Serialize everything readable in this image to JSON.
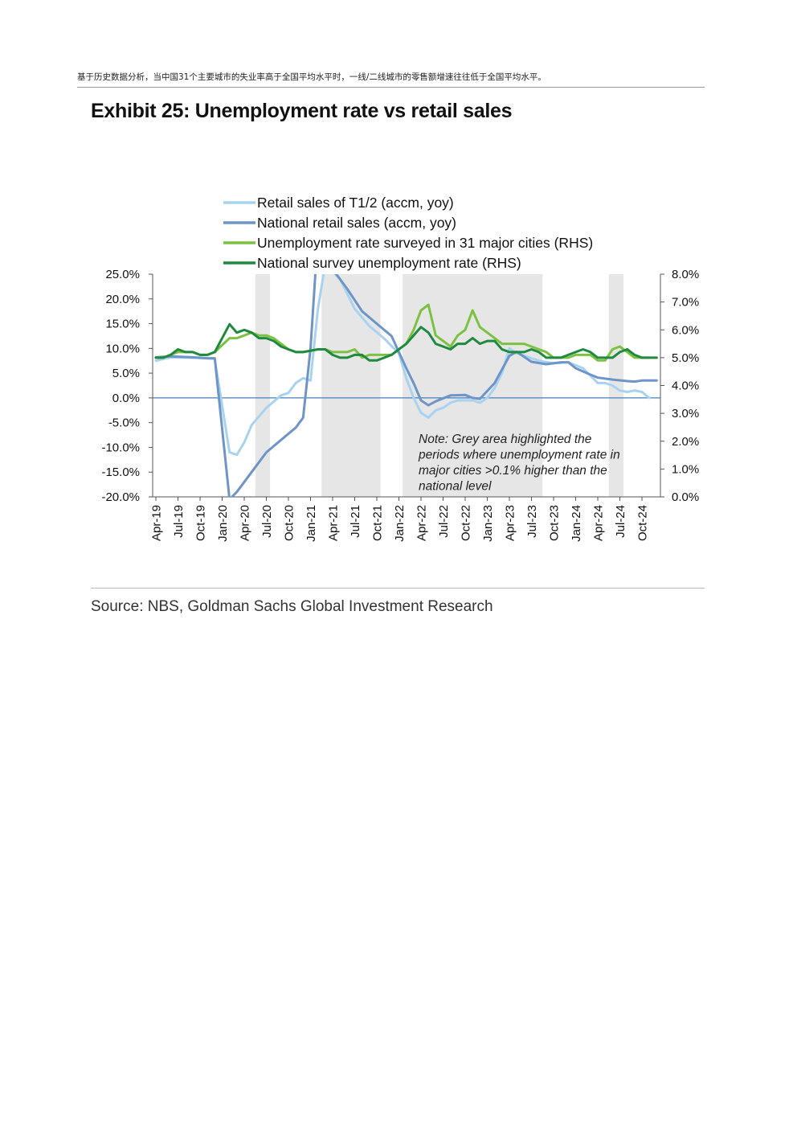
{
  "page": {
    "header_note": "基于历史数据分析，当中国31个主要城市的失业率高于全国平均水平时，一线/二线城市的零售额增速往往低于全国平均水平。",
    "exhibit_title": "Exhibit 25: Unemployment rate vs retail sales",
    "source": "Source: NBS, Goldman Sachs Global Investment Research"
  },
  "chart_data": {
    "type": "line",
    "x_tick_labels": [
      "Apr-19",
      "Jul-19",
      "Oct-19",
      "Jan-20",
      "Apr-20",
      "Jul-20",
      "Oct-20",
      "Jan-21",
      "Apr-21",
      "Jul-21",
      "Oct-21",
      "Jan-22",
      "Apr-22",
      "Jul-22",
      "Oct-22",
      "Jan-23",
      "Apr-23",
      "Jul-23",
      "Oct-23",
      "Jan-24",
      "Apr-24",
      "Jul-24",
      "Oct-24"
    ],
    "x_range": [
      "2019-04",
      "2024-12"
    ],
    "y_left": {
      "range": [
        -20,
        25
      ],
      "ticks": [
        "25.0%",
        "20.0%",
        "15.0%",
        "10.0%",
        "5.0%",
        "0.0%",
        "-5.0%",
        "-10.0%",
        "-15.0%",
        "-20.0%"
      ],
      "tick_values": [
        25,
        20,
        15,
        10,
        5,
        0,
        -5,
        -10,
        -15,
        -20
      ]
    },
    "y_right": {
      "range": [
        0,
        8
      ],
      "ticks": [
        "8.0%",
        "7.0%",
        "6.0%",
        "5.0%",
        "4.0%",
        "3.0%",
        "2.0%",
        "1.0%",
        "0.0%"
      ],
      "tick_values": [
        8,
        7,
        6,
        5,
        4,
        3,
        2,
        1,
        0
      ]
    },
    "legend_position": "top",
    "grid": false,
    "shaded_periods": [
      [
        "2020-06",
        "2020-07"
      ],
      [
        "2021-03",
        "2021-10"
      ],
      [
        "2022-02",
        "2023-08"
      ],
      [
        "2024-06",
        "2024-07"
      ]
    ],
    "shading_color": "#e6e6e6",
    "annotation": "Note: Grey area highlighted the periods where unemployment rate in major cities >0.1% higher than the national level",
    "series": [
      {
        "name": "Retail sales of T1/2 (accm, yoy)",
        "axis": "left",
        "color": "#a8d3f0",
        "points": [
          [
            "2019-04",
            7.5
          ],
          [
            "2019-06",
            8.2
          ],
          [
            "2019-09",
            8.1
          ],
          [
            "2019-11",
            8.0
          ],
          [
            "2019-12",
            7.9
          ],
          [
            "2020-02",
            -11.0
          ],
          [
            "2020-03",
            -11.5
          ],
          [
            "2020-04",
            -9.0
          ],
          [
            "2020-05",
            -5.5
          ],
          [
            "2020-07",
            -2.0
          ],
          [
            "2020-09",
            0.5
          ],
          [
            "2020-10",
            1.0
          ],
          [
            "2020-11",
            3.0
          ],
          [
            "2020-12",
            4.0
          ],
          [
            "2021-01",
            3.5
          ],
          [
            "2021-02",
            18.0
          ],
          [
            "2021-03",
            27.0
          ],
          [
            "2021-05",
            24.0
          ],
          [
            "2021-07",
            18.0
          ],
          [
            "2021-09",
            14.5
          ],
          [
            "2021-11",
            12.0
          ],
          [
            "2021-12",
            10.5
          ],
          [
            "2022-01",
            9.0
          ],
          [
            "2022-02",
            4.0
          ],
          [
            "2022-03",
            0.0
          ],
          [
            "2022-04",
            -3.0
          ],
          [
            "2022-05",
            -4.0
          ],
          [
            "2022-06",
            -2.5
          ],
          [
            "2022-07",
            -2.0
          ],
          [
            "2022-08",
            -1.0
          ],
          [
            "2022-09",
            -0.5
          ],
          [
            "2022-11",
            -0.5
          ],
          [
            "2022-12",
            -1.0
          ],
          [
            "2023-01",
            0.0
          ],
          [
            "2023-02",
            2.0
          ],
          [
            "2023-03",
            5.0
          ],
          [
            "2023-04",
            10.0
          ],
          [
            "2023-05",
            9.0
          ],
          [
            "2023-06",
            8.5
          ],
          [
            "2023-08",
            7.5
          ],
          [
            "2023-10",
            7.0
          ],
          [
            "2023-12",
            7.2
          ],
          [
            "2024-02",
            6.0
          ],
          [
            "2024-03",
            4.5
          ],
          [
            "2024-04",
            3.0
          ],
          [
            "2024-05",
            3.0
          ],
          [
            "2024-06",
            2.5
          ],
          [
            "2024-07",
            1.5
          ],
          [
            "2024-08",
            1.2
          ],
          [
            "2024-09",
            1.5
          ],
          [
            "2024-10",
            1.2
          ],
          [
            "2024-11",
            0.0
          ]
        ]
      },
      {
        "name": "National retail sales (accm, yoy)",
        "axis": "left",
        "color": "#6e94c8",
        "points": [
          [
            "2019-04",
            8.2
          ],
          [
            "2019-06",
            8.4
          ],
          [
            "2019-09",
            8.2
          ],
          [
            "2019-11",
            8.0
          ],
          [
            "2019-12",
            8.0
          ],
          [
            "2020-02",
            -20.5
          ],
          [
            "2020-03",
            -19.0
          ],
          [
            "2020-05",
            -15.0
          ],
          [
            "2020-07",
            -11.0
          ],
          [
            "2020-09",
            -8.5
          ],
          [
            "2020-11",
            -6.0
          ],
          [
            "2020-12",
            -4.0
          ],
          [
            "2021-01",
            10.0
          ],
          [
            "2021-02",
            33.0
          ],
          [
            "2021-04",
            26.0
          ],
          [
            "2021-06",
            22.0
          ],
          [
            "2021-08",
            17.5
          ],
          [
            "2021-10",
            15.0
          ],
          [
            "2021-12",
            12.5
          ],
          [
            "2022-02",
            6.0
          ],
          [
            "2022-03",
            3.0
          ],
          [
            "2022-04",
            -0.5
          ],
          [
            "2022-05",
            -1.5
          ],
          [
            "2022-06",
            -0.7
          ],
          [
            "2022-08",
            0.5
          ],
          [
            "2022-10",
            0.6
          ],
          [
            "2022-11",
            0.0
          ],
          [
            "2022-12",
            -0.2
          ],
          [
            "2023-02",
            3.0
          ],
          [
            "2023-04",
            8.5
          ],
          [
            "2023-05",
            9.3
          ],
          [
            "2023-07",
            7.3
          ],
          [
            "2023-09",
            6.8
          ],
          [
            "2023-11",
            7.2
          ],
          [
            "2023-12",
            7.2
          ],
          [
            "2024-01",
            6.0
          ],
          [
            "2024-03",
            4.7
          ],
          [
            "2024-04",
            4.1
          ],
          [
            "2024-06",
            3.7
          ],
          [
            "2024-08",
            3.4
          ],
          [
            "2024-09",
            3.3
          ],
          [
            "2024-10",
            3.5
          ],
          [
            "2024-12",
            3.5
          ]
        ]
      },
      {
        "name": "Unemployment rate surveyed in 31 major cities (RHS)",
        "axis": "right",
        "color": "#7cc242",
        "points": [
          [
            "2019-04",
            5.0
          ],
          [
            "2019-05",
            5.0
          ],
          [
            "2019-06",
            5.1
          ],
          [
            "2019-07",
            5.2
          ],
          [
            "2019-08",
            5.2
          ],
          [
            "2019-09",
            5.2
          ],
          [
            "2019-10",
            5.1
          ],
          [
            "2019-11",
            5.1
          ],
          [
            "2019-12",
            5.2
          ],
          [
            "2020-02",
            5.7
          ],
          [
            "2020-03",
            5.7
          ],
          [
            "2020-04",
            5.8
          ],
          [
            "2020-05",
            5.9
          ],
          [
            "2020-06",
            5.8
          ],
          [
            "2020-07",
            5.8
          ],
          [
            "2020-08",
            5.7
          ],
          [
            "2020-09",
            5.5
          ],
          [
            "2020-10",
            5.3
          ],
          [
            "2020-11",
            5.2
          ],
          [
            "2020-12",
            5.2
          ],
          [
            "2021-02",
            5.3
          ],
          [
            "2021-03",
            5.3
          ],
          [
            "2021-04",
            5.2
          ],
          [
            "2021-05",
            5.2
          ],
          [
            "2021-06",
            5.2
          ],
          [
            "2021-07",
            5.3
          ],
          [
            "2021-08",
            5.0
          ],
          [
            "2021-09",
            5.1
          ],
          [
            "2021-10",
            5.1
          ],
          [
            "2021-11",
            5.1
          ],
          [
            "2021-12",
            5.1
          ],
          [
            "2022-01",
            5.3
          ],
          [
            "2022-02",
            5.5
          ],
          [
            "2022-03",
            6.0
          ],
          [
            "2022-04",
            6.7
          ],
          [
            "2022-05",
            6.9
          ],
          [
            "2022-06",
            5.8
          ],
          [
            "2022-07",
            5.6
          ],
          [
            "2022-08",
            5.4
          ],
          [
            "2022-09",
            5.8
          ],
          [
            "2022-10",
            6.0
          ],
          [
            "2022-11",
            6.7
          ],
          [
            "2022-12",
            6.1
          ],
          [
            "2023-01",
            5.9
          ],
          [
            "2023-02",
            5.7
          ],
          [
            "2023-03",
            5.5
          ],
          [
            "2023-04",
            5.5
          ],
          [
            "2023-05",
            5.5
          ],
          [
            "2023-06",
            5.5
          ],
          [
            "2023-07",
            5.4
          ],
          [
            "2023-08",
            5.3
          ],
          [
            "2023-09",
            5.2
          ],
          [
            "2023-10",
            5.0
          ],
          [
            "2023-11",
            5.0
          ],
          [
            "2023-12",
            5.0
          ],
          [
            "2024-01",
            5.1
          ],
          [
            "2024-02",
            5.1
          ],
          [
            "2024-03",
            5.1
          ],
          [
            "2024-04",
            4.9
          ],
          [
            "2024-05",
            4.9
          ],
          [
            "2024-06",
            5.3
          ],
          [
            "2024-07",
            5.4
          ],
          [
            "2024-08",
            5.2
          ],
          [
            "2024-09",
            5.0
          ],
          [
            "2024-10",
            5.0
          ],
          [
            "2024-11",
            5.0
          ]
        ]
      },
      {
        "name": "National survey unemployment rate (RHS)",
        "axis": "right",
        "color": "#1f8a3f",
        "points": [
          [
            "2019-04",
            5.0
          ],
          [
            "2019-05",
            5.0
          ],
          [
            "2019-06",
            5.1
          ],
          [
            "2019-07",
            5.3
          ],
          [
            "2019-08",
            5.2
          ],
          [
            "2019-09",
            5.2
          ],
          [
            "2019-10",
            5.1
          ],
          [
            "2019-11",
            5.1
          ],
          [
            "2019-12",
            5.2
          ],
          [
            "2020-02",
            6.2
          ],
          [
            "2020-03",
            5.9
          ],
          [
            "2020-04",
            6.0
          ],
          [
            "2020-05",
            5.9
          ],
          [
            "2020-06",
            5.7
          ],
          [
            "2020-07",
            5.7
          ],
          [
            "2020-08",
            5.6
          ],
          [
            "2020-09",
            5.4
          ],
          [
            "2020-10",
            5.3
          ],
          [
            "2020-11",
            5.2
          ],
          [
            "2020-12",
            5.2
          ],
          [
            "2021-02",
            5.3
          ],
          [
            "2021-03",
            5.3
          ],
          [
            "2021-04",
            5.1
          ],
          [
            "2021-05",
            5.0
          ],
          [
            "2021-06",
            5.0
          ],
          [
            "2021-07",
            5.1
          ],
          [
            "2021-08",
            5.1
          ],
          [
            "2021-09",
            4.9
          ],
          [
            "2021-10",
            4.9
          ],
          [
            "2021-11",
            5.0
          ],
          [
            "2021-12",
            5.1
          ],
          [
            "2022-01",
            5.3
          ],
          [
            "2022-02",
            5.5
          ],
          [
            "2022-03",
            5.8
          ],
          [
            "2022-04",
            6.1
          ],
          [
            "2022-05",
            5.9
          ],
          [
            "2022-06",
            5.5
          ],
          [
            "2022-07",
            5.4
          ],
          [
            "2022-08",
            5.3
          ],
          [
            "2022-09",
            5.5
          ],
          [
            "2022-10",
            5.5
          ],
          [
            "2022-11",
            5.7
          ],
          [
            "2022-12",
            5.5
          ],
          [
            "2023-01",
            5.6
          ],
          [
            "2023-02",
            5.6
          ],
          [
            "2023-03",
            5.3
          ],
          [
            "2023-04",
            5.2
          ],
          [
            "2023-05",
            5.2
          ],
          [
            "2023-06",
            5.2
          ],
          [
            "2023-07",
            5.3
          ],
          [
            "2023-08",
            5.2
          ],
          [
            "2023-09",
            5.0
          ],
          [
            "2023-10",
            5.0
          ],
          [
            "2023-11",
            5.0
          ],
          [
            "2023-12",
            5.1
          ],
          [
            "2024-01",
            5.2
          ],
          [
            "2024-02",
            5.3
          ],
          [
            "2024-03",
            5.2
          ],
          [
            "2024-04",
            5.0
          ],
          [
            "2024-05",
            5.0
          ],
          [
            "2024-06",
            5.0
          ],
          [
            "2024-07",
            5.2
          ],
          [
            "2024-08",
            5.3
          ],
          [
            "2024-09",
            5.1
          ],
          [
            "2024-10",
            5.0
          ],
          [
            "2024-11",
            5.0
          ],
          [
            "2024-12",
            5.0
          ]
        ]
      }
    ]
  }
}
